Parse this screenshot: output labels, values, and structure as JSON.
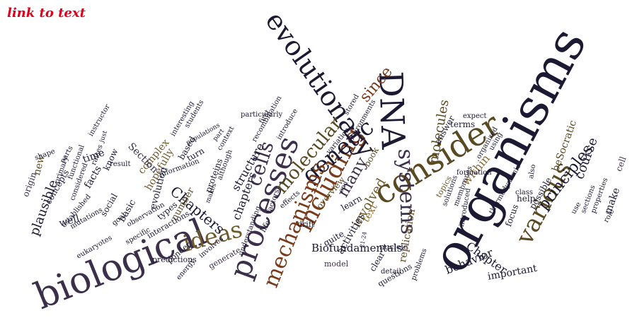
{
  "link": {
    "label": "link to text"
  },
  "palette": {
    "a": "#1c1a33",
    "b": "#5a4a22",
    "c": "#7a3b1a",
    "d": "#3b2f4a",
    "e": "#6e5a2a",
    "f": "#2a2a2a",
    "g": "#8b6a2e"
  },
  "words": [
    {
      "text": "organisms",
      "color": "a"
    },
    {
      "text": "consider",
      "color": "b"
    },
    {
      "text": "evolutionary",
      "color": "a"
    },
    {
      "text": "biological",
      "color": "d"
    },
    {
      "text": "DNA",
      "color": "a"
    },
    {
      "text": "systems",
      "color": "d"
    },
    {
      "text": "processes",
      "color": "d"
    },
    {
      "text": "including",
      "color": "c"
    },
    {
      "text": "various",
      "color": "b"
    },
    {
      "text": "cells",
      "color": "d"
    },
    {
      "text": "genetic",
      "color": "a"
    },
    {
      "text": "molecular",
      "color": "b"
    },
    {
      "text": "mechanisms",
      "color": "c"
    },
    {
      "text": "ideas",
      "color": "e"
    },
    {
      "text": "principles",
      "color": "a"
    },
    {
      "text": "many",
      "color": "d"
    },
    {
      "text": "since",
      "color": "c"
    },
    {
      "text": "Chapters",
      "color": "a"
    },
    {
      "text": "molecules",
      "color": "b"
    },
    {
      "text": "course",
      "color": "a"
    },
    {
      "text": "plausible",
      "color": "a"
    },
    {
      "text": "involved",
      "color": "e"
    },
    {
      "text": "replication",
      "color": "b"
    },
    {
      "text": "within",
      "color": "g"
    },
    {
      "text": "chapters",
      "color": "a"
    },
    {
      "text": "structure",
      "color": "a"
    },
    {
      "text": "Chapter",
      "color": "a"
    },
    {
      "text": "behavior",
      "color": "a"
    },
    {
      "text": "important",
      "color": "a"
    },
    {
      "text": "beSocratic",
      "color": "b"
    },
    {
      "text": "text",
      "color": "g"
    },
    {
      "text": "activities",
      "color": "a"
    },
    {
      "text": "Biofundamentals",
      "color": "a"
    },
    {
      "text": "complex",
      "color": "e"
    },
    {
      "text": "Section",
      "color": "d"
    },
    {
      "text": "hopefully",
      "color": "e"
    },
    {
      "text": "time",
      "color": "a"
    },
    {
      "text": "facts",
      "color": "a"
    },
    {
      "text": "new",
      "color": "b"
    },
    {
      "text": "evolution",
      "color": "a"
    },
    {
      "text": "basic",
      "color": "a"
    },
    {
      "text": "number",
      "color": "b"
    },
    {
      "text": "types",
      "color": "a"
    },
    {
      "text": "well",
      "color": "a"
    },
    {
      "text": "social",
      "color": "a"
    },
    {
      "text": "concepts",
      "color": "a"
    },
    {
      "text": "origin",
      "color": "d"
    },
    {
      "text": "know",
      "color": "a"
    },
    {
      "text": "make",
      "color": "a"
    },
    {
      "text": "cell",
      "color": "d"
    },
    {
      "text": "possible",
      "color": "a"
    },
    {
      "text": "help",
      "color": "a"
    },
    {
      "text": "focus",
      "color": "a"
    },
    {
      "text": "answer",
      "color": "a"
    },
    {
      "text": "terms",
      "color": "a"
    },
    {
      "text": "book",
      "color": "b"
    },
    {
      "text": "learn",
      "color": "a"
    },
    {
      "text": "quite",
      "color": "a"
    },
    {
      "text": "overview",
      "color": "b"
    },
    {
      "text": "clear",
      "color": "a"
    },
    {
      "text": "model",
      "color": "d"
    },
    {
      "text": "questions",
      "color": "a"
    },
    {
      "text": "nucleic",
      "color": "a"
    },
    {
      "text": "topics",
      "color": "e"
    },
    {
      "text": "based",
      "color": "a"
    },
    {
      "text": "turn",
      "color": "a"
    },
    {
      "text": "proteins",
      "color": "a"
    },
    {
      "text": "life",
      "color": "a"
    },
    {
      "text": "drift",
      "color": "a"
    },
    {
      "text": "interactions",
      "color": "a"
    },
    {
      "text": "ponder",
      "color": "a"
    },
    {
      "text": "predictions",
      "color": "a"
    },
    {
      "text": "generate",
      "color": "d"
    },
    {
      "text": "involves",
      "color": "a"
    },
    {
      "text": "energy",
      "color": "a"
    },
    {
      "text": "specific",
      "color": "a"
    },
    {
      "text": "eukaryotes",
      "color": "a"
    },
    {
      "text": "mutations",
      "color": "a"
    },
    {
      "text": "established",
      "color": "a"
    },
    {
      "text": "observation",
      "color": "a"
    },
    {
      "text": "goal",
      "color": "a"
    },
    {
      "text": "interesting",
      "color": "a"
    },
    {
      "text": "students",
      "color": "a"
    },
    {
      "text": "information",
      "color": "a"
    },
    {
      "text": "context",
      "color": "a"
    },
    {
      "text": "although",
      "color": "a"
    },
    {
      "text": "recombination",
      "color": "a"
    },
    {
      "text": "particularly",
      "color": "a"
    },
    {
      "text": "stored",
      "color": "a"
    },
    {
      "text": "environments",
      "color": "a"
    },
    {
      "text": "introduce",
      "color": "a"
    },
    {
      "text": "first",
      "color": "a"
    },
    {
      "text": "understanding",
      "color": "a"
    },
    {
      "text": "factors",
      "color": "a"
    },
    {
      "text": "effects",
      "color": "a"
    },
    {
      "text": "detail",
      "color": "a"
    },
    {
      "text": "problems",
      "color": "a"
    },
    {
      "text": "introduced",
      "color": "a"
    },
    {
      "text": "membranes",
      "color": "a"
    },
    {
      "text": "solutions",
      "color": "a"
    },
    {
      "text": "formation",
      "color": "a"
    },
    {
      "text": "organized",
      "color": "a"
    },
    {
      "text": "using",
      "color": "a"
    },
    {
      "text": "thermodynamic",
      "color": "a"
    },
    {
      "text": "also",
      "color": "a"
    },
    {
      "text": "class",
      "color": "a"
    },
    {
      "text": "use",
      "color": "a"
    },
    {
      "text": "sections",
      "color": "a"
    },
    {
      "text": "role",
      "color": "a"
    },
    {
      "text": "properties",
      "color": "a"
    },
    {
      "text": "expect",
      "color": "a"
    },
    {
      "text": "instructor",
      "color": "a"
    },
    {
      "text": "result",
      "color": "a"
    },
    {
      "text": "raises",
      "color": "a"
    },
    {
      "text": "primary",
      "color": "a"
    },
    {
      "text": "considered",
      "color": "a"
    },
    {
      "text": "functional",
      "color": "a"
    },
    {
      "text": "shape",
      "color": "a"
    },
    {
      "text": "parts",
      "color": "a"
    },
    {
      "text": "just",
      "color": "a"
    },
    {
      "text": "populations",
      "color": "a"
    },
    {
      "text": "part",
      "color": "a"
    },
    {
      "text": "makes",
      "color": "a"
    },
    {
      "text": "21-24",
      "color": "a"
    },
    {
      "text": "end",
      "color": "a"
    },
    {
      "text": "variation",
      "color": "a"
    }
  ]
}
